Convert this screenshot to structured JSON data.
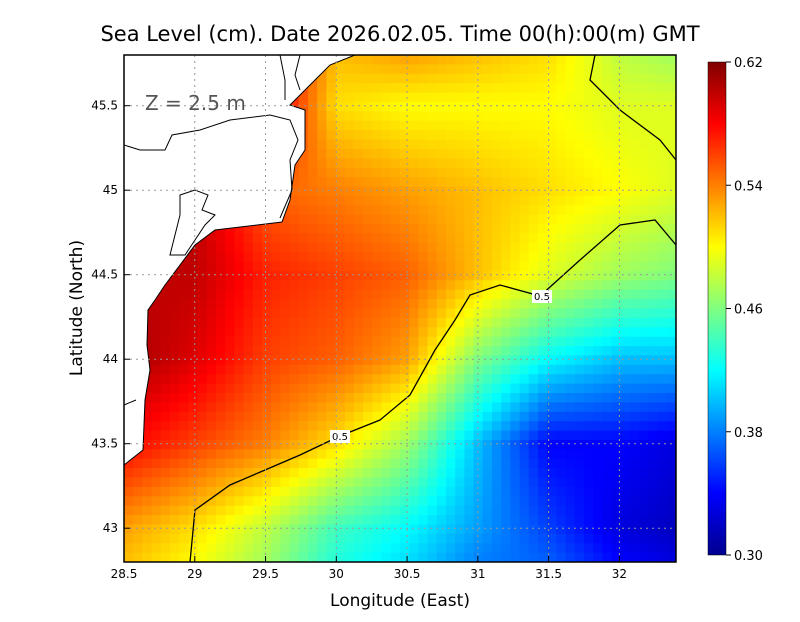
{
  "chart_data": {
    "type": "heatmap",
    "title": "Sea Level (cm). Date 2026.02.05. Time 00(h):00(m) GMT",
    "annotation": "Z = 2.5 m",
    "xlabel": "Longitude (East)",
    "ylabel": "Latitude (North)",
    "xlim": [
      28.5,
      32.4
    ],
    "ylim": [
      42.8,
      45.8
    ],
    "xticks": [
      "28.5",
      "29",
      "29.5",
      "30",
      "30.5",
      "31",
      "31.5",
      "32"
    ],
    "xtick_values": [
      28.5,
      29,
      29.5,
      30,
      30.5,
      31,
      31.5,
      32
    ],
    "yticks": [
      "43",
      "43.5",
      "44",
      "44.5",
      "45",
      "45.5"
    ],
    "ytick_values": [
      43,
      43.5,
      44,
      44.5,
      45,
      45.5
    ],
    "grid": true,
    "colorbar": {
      "min": 0.3,
      "max": 0.62,
      "ticks": [
        "0.62",
        "0.54",
        "0.46",
        "0.38",
        "0.30"
      ],
      "tick_values": [
        0.62,
        0.54,
        0.46,
        0.38,
        0.3
      ],
      "colormap": "jet",
      "placement": "right"
    },
    "contour_labels": [
      "0.5",
      "0.5"
    ],
    "contour_level": 0.5,
    "grid_lons": [
      28.5,
      29,
      29.5,
      30,
      30.5,
      31,
      31.5,
      32,
      32.4
    ],
    "grid_lats": [
      45.8,
      45.5,
      45.0,
      44.5,
      44.0,
      43.5,
      43.0,
      42.8
    ],
    "values": [
      [
        null,
        null,
        null,
        0.52,
        0.53,
        0.52,
        0.51,
        0.48,
        0.47
      ],
      [
        null,
        null,
        null,
        0.51,
        0.5,
        0.5,
        0.5,
        0.49,
        0.49
      ],
      [
        null,
        null,
        0.55,
        0.54,
        0.53,
        0.52,
        0.51,
        0.5,
        0.49
      ],
      [
        null,
        0.6,
        0.57,
        0.56,
        0.55,
        0.52,
        0.49,
        0.47,
        0.46
      ],
      [
        0.61,
        0.59,
        0.56,
        0.55,
        0.53,
        0.46,
        0.42,
        0.4,
        0.4
      ],
      [
        0.58,
        0.56,
        0.54,
        0.51,
        0.47,
        0.4,
        0.34,
        0.34,
        0.33
      ],
      [
        0.53,
        0.51,
        0.48,
        0.44,
        0.42,
        0.39,
        0.36,
        0.33,
        0.32
      ],
      [
        0.52,
        0.5,
        0.47,
        0.43,
        0.41,
        0.38,
        0.37,
        0.34,
        0.33
      ]
    ]
  }
}
